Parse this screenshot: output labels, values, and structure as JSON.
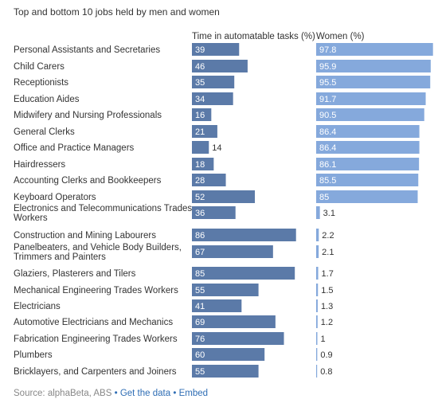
{
  "chart_data": {
    "type": "bar",
    "title": "Top and bottom 10 jobs held by men and women",
    "categories": [
      "Personal Assistants and Secretaries",
      "Child Carers",
      "Receptionists",
      "Education Aides",
      "Midwifery and Nursing Professionals",
      "General Clerks",
      "Office and Practice Managers",
      "Hairdressers",
      "Accounting Clerks and Bookkeepers",
      "Keyboard Operators",
      "Electronics and Telecommunications Trades Workers",
      "Construction and Mining Labourers",
      "Panelbeaters, and Vehicle Body Builders, Trimmers and Painters",
      "Glaziers, Plasterers and Tilers",
      "Mechanical Engineering Trades Workers",
      "Electricians",
      "Automotive Electricians and Mechanics",
      "Fabrication Engineering Trades Workers",
      "Plumbers",
      "Bricklayers, and Carpenters and Joiners"
    ],
    "category_lines": [
      [
        "Personal Assistants and Secretaries"
      ],
      [
        "Child Carers"
      ],
      [
        "Receptionists"
      ],
      [
        "Education Aides"
      ],
      [
        "Midwifery and Nursing Professionals"
      ],
      [
        "General Clerks"
      ],
      [
        "Office and Practice Managers"
      ],
      [
        "Hairdressers"
      ],
      [
        "Accounting Clerks and Bookkeepers"
      ],
      [
        "Keyboard Operators"
      ],
      [
        "Electronics and Telecommunications Trades",
        "Workers"
      ],
      [
        "Construction and Mining Labourers"
      ],
      [
        "Panelbeaters, and Vehicle Body Builders,",
        "Trimmers and Painters"
      ],
      [
        "Glaziers, Plasterers and Tilers"
      ],
      [
        "Mechanical Engineering Trades Workers"
      ],
      [
        "Electricians"
      ],
      [
        "Automotive Electricians and Mechanics"
      ],
      [
        "Fabrication Engineering Trades Workers"
      ],
      [
        "Plumbers"
      ],
      [
        "Bricklayers, and Carpenters and Joiners"
      ]
    ],
    "series": [
      {
        "name": "Time in automatable tasks (%)",
        "color": "#5b7aa8",
        "max": 100,
        "values": [
          39,
          46,
          35,
          34,
          16,
          21,
          14,
          18,
          28,
          52,
          36,
          86,
          67,
          85,
          55,
          41,
          69,
          76,
          60,
          55
        ],
        "labels": [
          "39",
          "46",
          "35",
          "34",
          "16",
          "21",
          "14",
          "18",
          "28",
          "52",
          "36",
          "86",
          "67",
          "85",
          "55",
          "41",
          "69",
          "76",
          "60",
          "55"
        ]
      },
      {
        "name": "Women (%)",
        "color": "#85a9dc",
        "max": 100,
        "values": [
          97.8,
          95.9,
          95.5,
          91.7,
          90.5,
          86.4,
          86.4,
          86.1,
          85.5,
          85,
          3.1,
          2.2,
          2.1,
          1.7,
          1.5,
          1.3,
          1.2,
          1,
          0.9,
          0.8
        ],
        "labels": [
          "97.8",
          "95.9",
          "95.5",
          "91.7",
          "90.5",
          "86.4",
          "86.4",
          "86.1",
          "85.5",
          "85",
          "3.1",
          "2.2",
          "2.1",
          "1.7",
          "1.5",
          "1.3",
          "1.2",
          "1",
          "0.9",
          "0.8"
        ]
      }
    ],
    "legend": "column-headers-top"
  },
  "footer": {
    "source_text": "Source: alphaBeta, ABS",
    "separator": "•",
    "link_data": "Get the data",
    "link_embed": "Embed"
  }
}
